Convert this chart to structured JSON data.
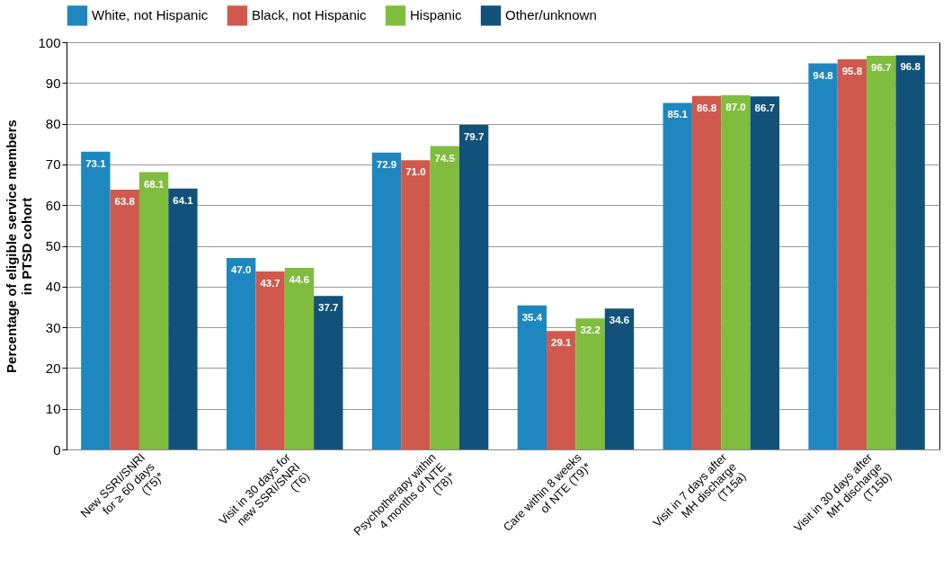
{
  "chart_data": {
    "type": "bar",
    "ylabel": "Percentage of eligible service members\nin PTSD cohort",
    "categories": [
      "New SSRI/SNRI\nfor ≥ 60 days\n(T5)*",
      "Visit in 30 days for\nnew SSRI/SNRI\n(T6)",
      "Psychotherapy within\n4 months of NTE\n(T8)*",
      "Care within 8 weeks\nof NTE (T9)*",
      "Visit in 7 days after\nMH discharge\n(T15a)",
      "Visit in 30 days after\nMH discharge\n(T15b)"
    ],
    "series": [
      {
        "name": "White, not Hispanic",
        "color": "#1f87c0",
        "values": [
          73.1,
          47,
          72.9,
          35.4,
          85.1,
          94.8
        ],
        "value_labels": [
          "73.1",
          "47.0",
          "72.9",
          "35.4",
          "85.1",
          "94.8"
        ]
      },
      {
        "name": "Black, not Hispanic",
        "color": "#d0594d",
        "values": [
          63.8,
          43.7,
          71,
          29.1,
          86.8,
          95.8
        ],
        "value_labels": [
          "63.8",
          "43.7",
          "71.0",
          "29.1",
          "86.8",
          "95.8"
        ]
      },
      {
        "name": "Hispanic",
        "color": "#80bd3f",
        "values": [
          68.1,
          44.6,
          74.5,
          32.2,
          87,
          96.7
        ],
        "value_labels": [
          "68.1",
          "44.6",
          "74.5",
          "32.2",
          "87.0",
          "96.7"
        ]
      },
      {
        "name": "Other/unknown",
        "color": "#12527a",
        "values": [
          64.1,
          37.7,
          79.7,
          34.6,
          86.7,
          96.8
        ],
        "value_labels": [
          "64.1",
          "37.7",
          "79.7",
          "34.6",
          "86.7",
          "96.8"
        ]
      }
    ],
    "ylim": [
      0,
      100
    ],
    "yticks": [
      0,
      10,
      20,
      30,
      40,
      50,
      60,
      70,
      80,
      90,
      100
    ],
    "grid": "y",
    "legend": "top"
  }
}
